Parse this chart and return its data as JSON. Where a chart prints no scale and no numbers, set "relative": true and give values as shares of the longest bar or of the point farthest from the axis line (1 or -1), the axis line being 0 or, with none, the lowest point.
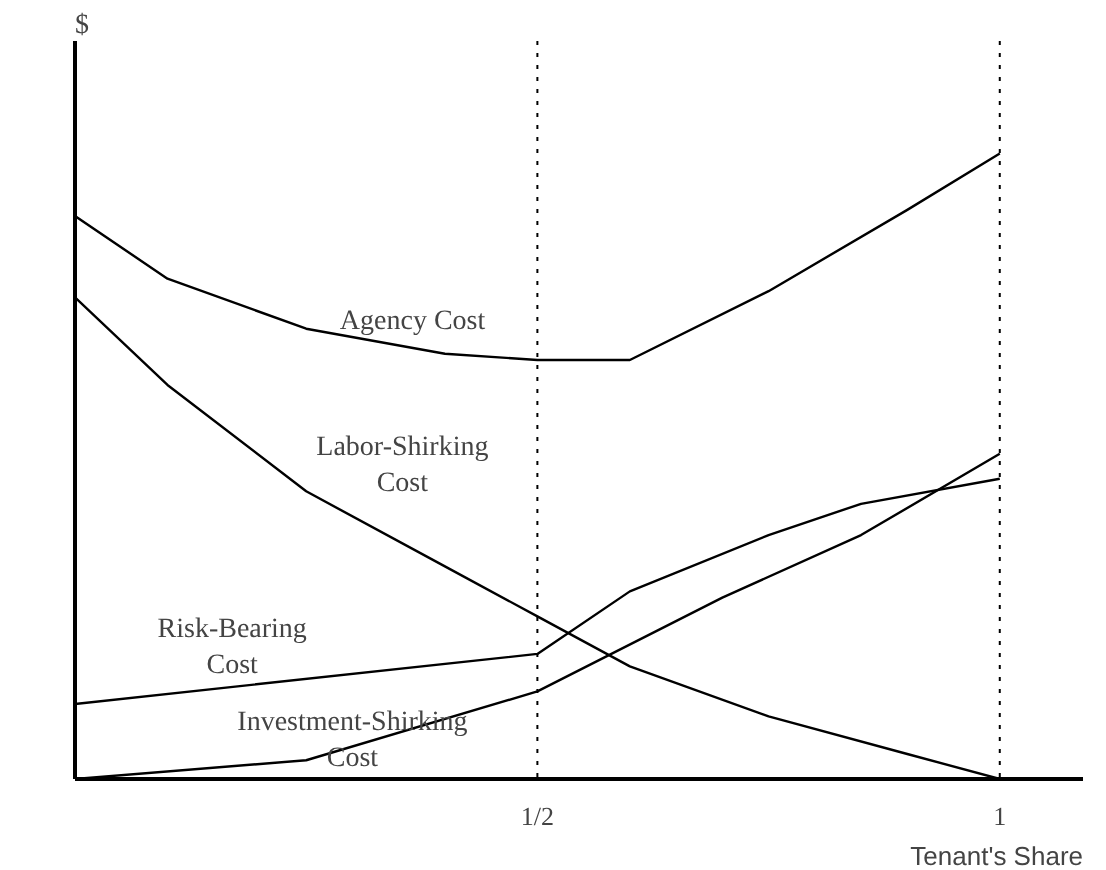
{
  "chart_data": {
    "type": "line",
    "relative": true,
    "xlabel": "Tenant's Share",
    "ylabel": "$",
    "xlim": [
      0,
      1.09
    ],
    "xticks": [
      {
        "value": 0.5,
        "label": "1/2"
      },
      {
        "value": 1,
        "label": "1"
      }
    ],
    "grid": false,
    "marker": "none",
    "line_style": "solid",
    "series": [
      {
        "color": "#000000",
        "x": [
          0,
          0.1,
          0.25,
          0.4,
          0.5,
          0.6,
          0.75,
          0.9,
          1
        ],
        "values": [
          0.9,
          0.8,
          0.72,
          0.68,
          0.67,
          0.67,
          0.78,
          0.91,
          1
        ]
      },
      {
        "color": "#000000",
        "x": [
          0,
          0.1,
          0.25,
          0.4,
          0.5,
          0.6,
          0.75,
          0.9,
          1
        ],
        "values": [
          0.77,
          0.63,
          0.46,
          0.34,
          0.26,
          0.18,
          0.1,
          0.04,
          0
        ]
      },
      {
        "color": "#000000",
        "x": [
          0,
          0.5,
          0.6,
          0.75,
          0.85,
          1
        ],
        "values": [
          0.12,
          0.2,
          0.3,
          0.39,
          0.44,
          0.48
        ]
      },
      {
        "color": "#000000",
        "x": [
          0,
          0.25,
          0.5,
          0.7,
          0.85,
          1
        ],
        "values": [
          0,
          0.03,
          0.14,
          0.29,
          0.39,
          0.52
        ]
      }
    ],
    "ref_lines": [
      {
        "axis": "x",
        "value": 0.5,
        "line_style": "dotted",
        "color": "#000000"
      },
      {
        "axis": "x",
        "value": 1,
        "line_style": "dotted",
        "color": "#000000"
      }
    ],
    "annotations": [
      "Agency Cost",
      "Labor-Shirking\nCost",
      "Risk-Bearing\nCost",
      "Investment-Shirking\nCost"
    ]
  }
}
